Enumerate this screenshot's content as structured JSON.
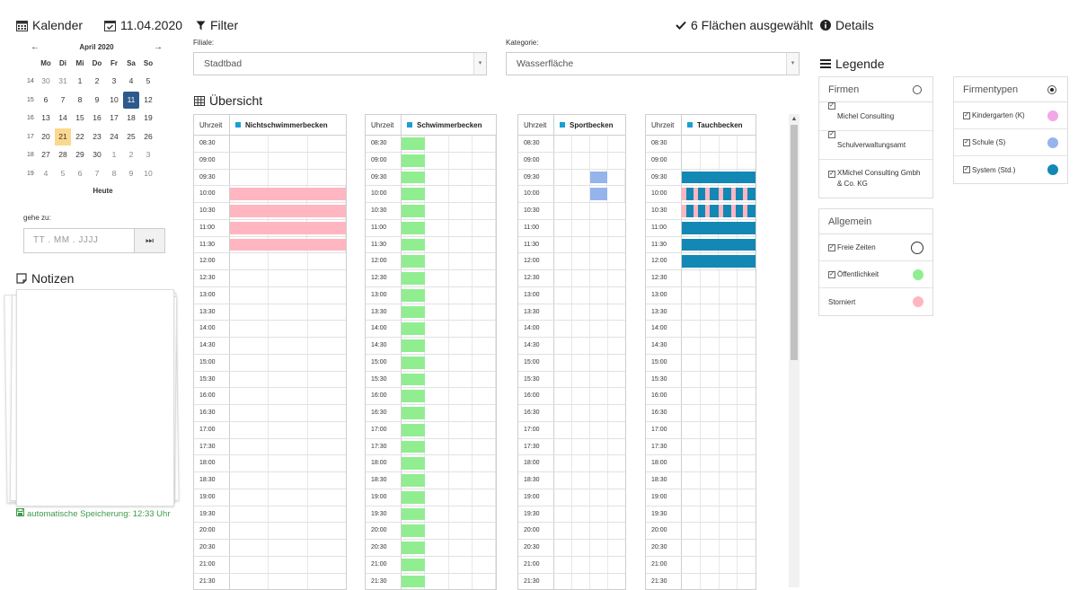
{
  "calendar": {
    "title": "Kalender",
    "selected_date": "11.04.2020",
    "month_label": "April 2020",
    "prev": "←",
    "next": "→",
    "weekdays": [
      "Mo",
      "Di",
      "Mi",
      "Do",
      "Fr",
      "Sa",
      "So"
    ],
    "weeks": [
      {
        "wk": "14",
        "days": [
          "30",
          "31",
          "1",
          "2",
          "3",
          "4",
          "5"
        ]
      },
      {
        "wk": "15",
        "days": [
          "6",
          "7",
          "8",
          "9",
          "10",
          "11",
          "12"
        ]
      },
      {
        "wk": "16",
        "days": [
          "13",
          "14",
          "15",
          "16",
          "17",
          "18",
          "19"
        ]
      },
      {
        "wk": "17",
        "days": [
          "20",
          "21",
          "22",
          "23",
          "24",
          "25",
          "26"
        ]
      },
      {
        "wk": "18",
        "days": [
          "27",
          "28",
          "29",
          "30",
          "1",
          "2",
          "3"
        ]
      },
      {
        "wk": "19",
        "days": [
          "4",
          "5",
          "6",
          "7",
          "8",
          "9",
          "10"
        ]
      }
    ],
    "today_button": "Heute",
    "goto_label": "gehe zu:",
    "goto_placeholder": "TT . MM . JJJJ",
    "goto_button": "⏭"
  },
  "notes": {
    "title": "Notizen",
    "autosave": "automatische Speicherung: 12:33 Uhr"
  },
  "filter": {
    "title": "Filter",
    "selected_info": "6 Flächen ausgewählt",
    "filiale_label": "Filiale:",
    "filiale_value": "Stadtbad",
    "kategorie_label": "Kategorie:",
    "kategorie_value": "Wasserfläche"
  },
  "overview": {
    "title": "Übersicht",
    "time_header": "Uhrzeit",
    "times": [
      "08:30",
      "09:00",
      "09:30",
      "10:00",
      "10:30",
      "11:00",
      "11:30",
      "12:00",
      "12:30",
      "13:00",
      "13:30",
      "14:00",
      "14:30",
      "15:00",
      "15:30",
      "16:00",
      "16:30",
      "17:00",
      "17:30",
      "18:00",
      "18:30",
      "19:00",
      "19:30",
      "20:00",
      "20:30",
      "21:00",
      "21:30"
    ],
    "rooms": [
      {
        "name": "Nichtschwimmerbecken",
        "cols": 3,
        "bookings": [
          {
            "row": 3,
            "col": 0,
            "span": 3,
            "type": "storniert"
          },
          {
            "row": 4,
            "col": 0,
            "span": 3,
            "type": "storniert"
          },
          {
            "row": 5,
            "col": 0,
            "span": 3,
            "type": "storniert"
          },
          {
            "row": 6,
            "col": 0,
            "span": 3,
            "type": "storniert"
          }
        ]
      },
      {
        "name": "Schwimmerbecken",
        "cols": 4,
        "bookings": "public_column_0"
      },
      {
        "name": "Sportbecken",
        "cols": 4,
        "bookings": [
          {
            "row": 2,
            "col": 2,
            "span": 1,
            "type": "schule"
          },
          {
            "row": 3,
            "col": 2,
            "span": 1,
            "type": "schule"
          }
        ]
      },
      {
        "name": "Tauchbecken",
        "cols": 4,
        "bookings": "dive"
      }
    ]
  },
  "details": {
    "title": "Details"
  },
  "legend": {
    "title": "Legende",
    "firmen": {
      "title": "Firmen",
      "items": [
        "Michel Consulting",
        "Schulverwaltungsamt",
        "XMichel Consulting Gmbh & Co. KG"
      ]
    },
    "firmentypen": {
      "title": "Firmentypen",
      "items": [
        {
          "label": "Kindergarten (K)",
          "color": "#f2a8e6"
        },
        {
          "label": "Schule (S)",
          "color": "#95b4ec"
        },
        {
          "label": "System (Std.)",
          "color": "#1488b4"
        }
      ]
    },
    "allgemein": {
      "title": "Allgemein",
      "items": [
        {
          "label": "Freie Zeiten",
          "color": "#ffffff"
        },
        {
          "label": "Öffentlichkeit",
          "color": "#90ee90"
        },
        {
          "label": "Storniert",
          "color": "#ffb6c1"
        }
      ]
    }
  },
  "colors": {
    "storniert": "#ffb6c1",
    "public": "#90ee90",
    "schule": "#95b4ec",
    "system": "#1488b4",
    "selected_day": "#2d5a8c",
    "today": "#fcd88e",
    "autosave": "#3e9b4a"
  }
}
